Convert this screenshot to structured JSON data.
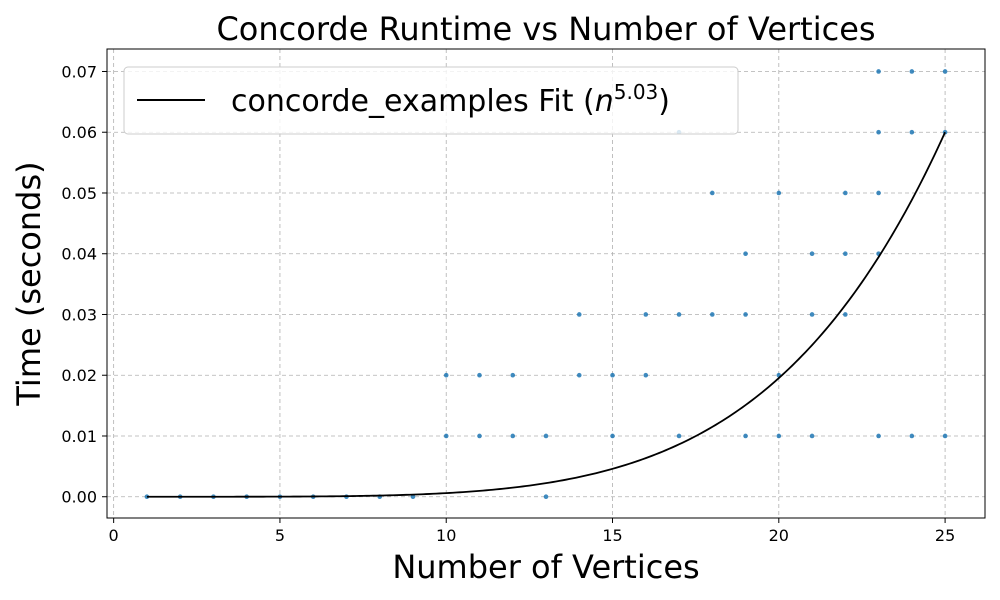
{
  "chart_data": {
    "type": "scatter",
    "title": "Concorde Runtime vs Number of Vertices",
    "xlabel": "Number of Vertices",
    "ylabel": "Time (seconds)",
    "xlim": [
      -0.2,
      26.2
    ],
    "ylim": [
      -0.0035,
      0.0737
    ],
    "xticks": [
      0,
      5,
      10,
      15,
      20,
      25
    ],
    "yticks": [
      0.0,
      0.01,
      0.02,
      0.03,
      0.04,
      0.05,
      0.06,
      0.07
    ],
    "xtick_labels": [
      "0",
      "5",
      "10",
      "15",
      "20",
      "25"
    ],
    "ytick_labels": [
      "0.00",
      "0.01",
      "0.02",
      "0.03",
      "0.04",
      "0.05",
      "0.06",
      "0.07"
    ],
    "grid": true,
    "legend": {
      "position": "top-left",
      "entry_prefix": "concorde_examples Fit (",
      "entry_var": "n",
      "entry_exp": "5.03",
      "entry_suffix": ")"
    },
    "series": [
      {
        "type": "scatter",
        "color": "#1f77b4",
        "points": [
          [
            1,
            0
          ],
          [
            2,
            0
          ],
          [
            3,
            0
          ],
          [
            4,
            0
          ],
          [
            5,
            0
          ],
          [
            6,
            0
          ],
          [
            7,
            0
          ],
          [
            8,
            0
          ],
          [
            9,
            0
          ],
          [
            10,
            0.01
          ],
          [
            10,
            0.02
          ],
          [
            11,
            0.01
          ],
          [
            11,
            0.02
          ],
          [
            12,
            0.01
          ],
          [
            12,
            0.02
          ],
          [
            13,
            0
          ],
          [
            13,
            0.01
          ],
          [
            14,
            0.02
          ],
          [
            14,
            0.03
          ],
          [
            15,
            0.01
          ],
          [
            15,
            0.02
          ],
          [
            16,
            0.02
          ],
          [
            16,
            0.03
          ],
          [
            17,
            0.01
          ],
          [
            17,
            0.03
          ],
          [
            17,
            0.06
          ],
          [
            18,
            0.03
          ],
          [
            18,
            0.05
          ],
          [
            19,
            0.01
          ],
          [
            19,
            0.03
          ],
          [
            19,
            0.04
          ],
          [
            20,
            0.01
          ],
          [
            20,
            0.02
          ],
          [
            20,
            0.05
          ],
          [
            21,
            0.01
          ],
          [
            21,
            0.03
          ],
          [
            21,
            0.04
          ],
          [
            22,
            0.03
          ],
          [
            22,
            0.04
          ],
          [
            22,
            0.05
          ],
          [
            23,
            0.01
          ],
          [
            23,
            0.04
          ],
          [
            23,
            0.05
          ],
          [
            23,
            0.06
          ],
          [
            23,
            0.07
          ],
          [
            24,
            0.01
          ],
          [
            24,
            0.06
          ],
          [
            24,
            0.07
          ],
          [
            25,
            0.01
          ],
          [
            25,
            0.06
          ],
          [
            25,
            0.07
          ]
        ]
      },
      {
        "type": "line",
        "name": "concorde_examples Fit",
        "color": "#000000",
        "fit": {
          "form": "a*n^b",
          "exponent": 5.03,
          "x_range": [
            1,
            25
          ],
          "y_at_25": 0.06
        }
      }
    ]
  }
}
